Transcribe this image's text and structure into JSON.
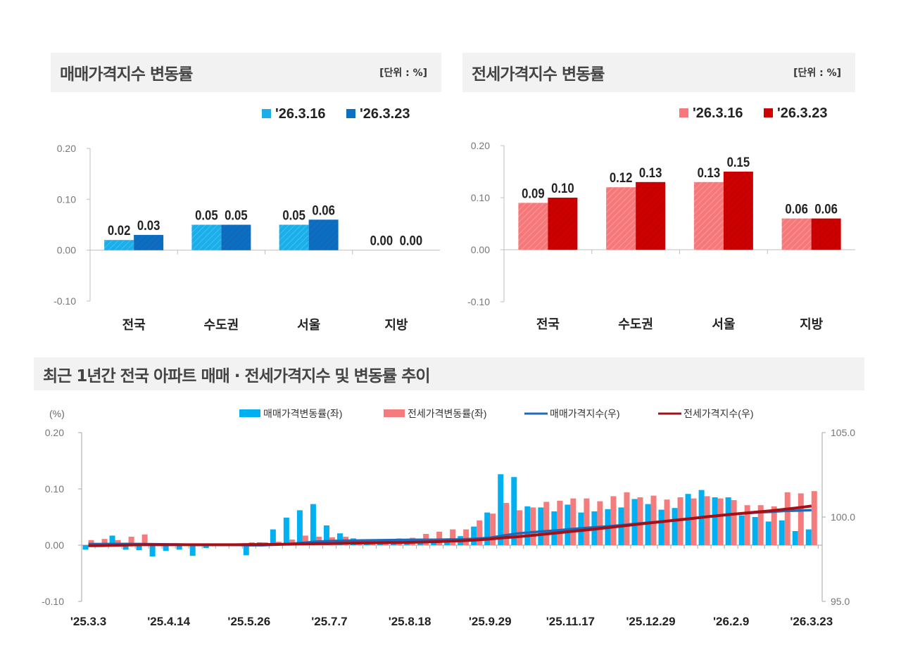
{
  "panels": {
    "sale": {
      "title": "매매가격지수 변동률",
      "unit": "[단위 : %]"
    },
    "jeonse": {
      "title": "전세가격지수 변동률",
      "unit": "[단위 : %]"
    },
    "trend": {
      "title": "최근 1년간 전국 아파트 매매 · 전세가격지수 및 변동률 추이"
    }
  },
  "colors": {
    "sale_prev": "#1aaeea",
    "sale_curr": "#0b6fc4",
    "jeonse_prev": "#f7787a",
    "jeonse_curr": "#cc0000",
    "trend_sale_bar": "#00b0f0",
    "trend_jeonse_bar": "#f47c7c",
    "trend_sale_line": "#1f6bb8",
    "trend_jeonse_line": "#a50f15"
  },
  "chart_data": [
    {
      "type": "bar",
      "categories": [
        "전국",
        "수도권",
        "서울",
        "지방"
      ],
      "series": [
        {
          "name": "'26.3.16",
          "values": [
            0.02,
            0.05,
            0.05,
            0.0
          ],
          "labels": [
            "0.02",
            "0.05",
            "0.05",
            "0.00"
          ]
        },
        {
          "name": "'26.3.23",
          "values": [
            0.03,
            0.05,
            0.06,
            0.0
          ],
          "labels": [
            "0.03",
            "0.05",
            "0.06",
            "0.00"
          ]
        }
      ],
      "ylim": [
        -0.1,
        0.2
      ],
      "yticks": [
        "0.20",
        "0.10",
        "0.00",
        "-0.10"
      ],
      "legend": "top-right"
    },
    {
      "type": "bar",
      "categories": [
        "전국",
        "수도권",
        "서울",
        "지방"
      ],
      "series": [
        {
          "name": "'26.3.16",
          "values": [
            0.09,
            0.12,
            0.13,
            0.06
          ],
          "labels": [
            "0.09",
            "0.12",
            "0.13",
            "0.06"
          ]
        },
        {
          "name": "'26.3.23",
          "values": [
            0.1,
            0.13,
            0.15,
            0.06
          ],
          "labels": [
            "0.10",
            "0.13",
            "0.15",
            "0.06"
          ]
        }
      ],
      "ylim": [
        -0.1,
        0.2
      ],
      "yticks": [
        "0.20",
        "0.10",
        "0.00",
        "-0.10"
      ],
      "legend": "top-right"
    },
    {
      "type": "bar+line",
      "ylabel_left": "(%)",
      "ylim_left": [
        -0.1,
        0.2
      ],
      "yticks_left": [
        "0.20",
        "0.10",
        "0.00",
        "-0.10"
      ],
      "ylim_right": [
        95.0,
        105.0
      ],
      "yticks_right": [
        "105.0",
        "100.0",
        "95.0"
      ],
      "xtick_labels": [
        "'25.3.3",
        "'25.4.14",
        "'25.5.26",
        "'25.7.7",
        "'25.8.18",
        "'25.9.29",
        "'25.11.17",
        "'25.12.29",
        "'26.2.9",
        "'26.3.23"
      ],
      "xtick_index": [
        0,
        6,
        12,
        18,
        24,
        30,
        36,
        42,
        48,
        54
      ],
      "legend": "top-center",
      "series": [
        {
          "name": "매매가격변동률(좌)",
          "kind": "bar",
          "axis": "left",
          "values": [
            -0.008,
            0.002,
            0.017,
            -0.008,
            -0.009,
            -0.02,
            -0.01,
            -0.008,
            -0.019,
            -0.005,
            0.0,
            0.0,
            -0.018,
            0.005,
            0.028,
            0.049,
            0.062,
            0.073,
            0.035,
            0.021,
            0.012,
            0.01,
            0.01,
            0.01,
            0.01,
            0.007,
            0.005,
            0.005,
            0.016,
            0.033,
            0.058,
            0.126,
            0.121,
            0.069,
            0.067,
            0.06,
            0.072,
            0.058,
            0.06,
            0.064,
            0.067,
            0.082,
            0.073,
            0.063,
            0.066,
            0.091,
            0.098,
            0.085,
            0.085,
            0.053,
            0.05,
            0.042,
            0.044,
            0.025,
            0.028
          ]
        },
        {
          "name": "전세가격변동률(좌)",
          "kind": "bar",
          "axis": "left",
          "values": [
            0.009,
            0.011,
            0.009,
            0.015,
            0.019,
            0.001,
            0.001,
            0.001,
            0.001,
            0.001,
            0.003,
            0.002,
            0.005,
            0.005,
            0.006,
            0.01,
            0.017,
            0.015,
            0.014,
            0.015,
            0.01,
            0.01,
            0.01,
            0.012,
            0.013,
            0.02,
            0.024,
            0.028,
            0.028,
            0.044,
            0.056,
            0.075,
            0.062,
            0.067,
            0.077,
            0.079,
            0.083,
            0.083,
            0.078,
            0.087,
            0.094,
            0.085,
            0.088,
            0.081,
            0.085,
            0.083,
            0.087,
            0.083,
            0.08,
            0.071,
            0.071,
            0.069,
            0.094,
            0.092,
            0.096
          ]
        },
        {
          "name": "매매가격지수(우)",
          "kind": "line",
          "axis": "right",
          "values": [
            98.4,
            98.4,
            98.41,
            98.41,
            98.4,
            98.39,
            98.38,
            98.37,
            98.35,
            98.35,
            98.35,
            98.35,
            98.33,
            98.33,
            98.36,
            98.41,
            98.47,
            98.54,
            98.58,
            98.6,
            98.61,
            98.62,
            98.63,
            98.64,
            98.65,
            98.66,
            98.66,
            98.67,
            98.68,
            98.72,
            98.77,
            98.9,
            99.02,
            99.09,
            99.15,
            99.21,
            99.28,
            99.34,
            99.4,
            99.46,
            99.53,
            99.61,
            99.68,
            99.74,
            99.81,
            99.9,
            100.0,
            100.08,
            100.17,
            100.22,
            100.27,
            100.31,
            100.36,
            100.38,
            100.41
          ]
        },
        {
          "name": "전세가격지수(우)",
          "kind": "line",
          "axis": "right",
          "values": [
            98.3,
            98.31,
            98.32,
            98.34,
            98.36,
            98.36,
            98.36,
            98.36,
            98.36,
            98.36,
            98.36,
            98.36,
            98.37,
            98.37,
            98.38,
            98.39,
            98.41,
            98.42,
            98.43,
            98.45,
            98.46,
            98.47,
            98.48,
            98.49,
            98.5,
            98.52,
            98.54,
            98.57,
            98.6,
            98.64,
            98.7,
            98.77,
            98.83,
            98.9,
            98.98,
            99.06,
            99.14,
            99.22,
            99.3,
            99.39,
            99.48,
            99.57,
            99.66,
            99.74,
            99.83,
            99.91,
            100.0,
            100.08,
            100.16,
            100.23,
            100.3,
            100.37,
            100.46,
            100.55,
            100.65
          ]
        }
      ]
    }
  ]
}
